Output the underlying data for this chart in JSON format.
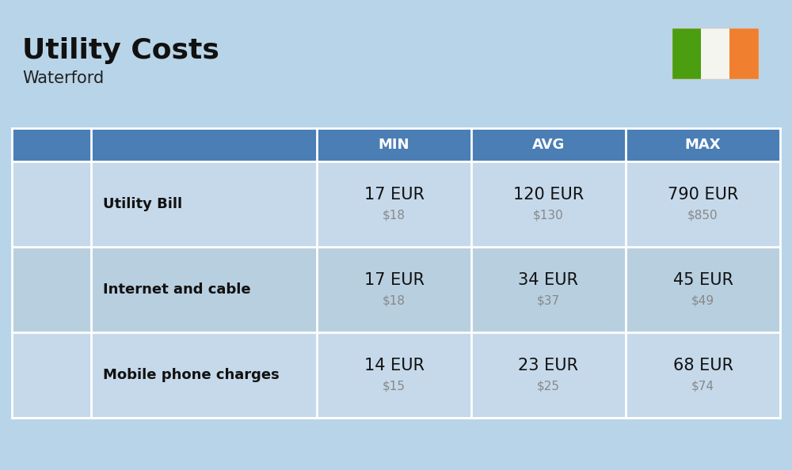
{
  "title": "Utility Costs",
  "subtitle": "Waterford",
  "background_color": "#b8d4e8",
  "header_bg_color": "#4a7eb5",
  "header_text_color": "#ffffff",
  "row_colors": [
    "#c5d9ea",
    "#b8cfe0"
  ],
  "icon_label_col_color": "#c5d9ea",
  "header_labels": [
    "MIN",
    "AVG",
    "MAX"
  ],
  "rows": [
    {
      "label": "Utility Bill",
      "min_eur": "17 EUR",
      "min_usd": "$18",
      "avg_eur": "120 EUR",
      "avg_usd": "$130",
      "max_eur": "790 EUR",
      "max_usd": "$850"
    },
    {
      "label": "Internet and cable",
      "min_eur": "17 EUR",
      "min_usd": "$18",
      "avg_eur": "34 EUR",
      "avg_usd": "$37",
      "max_eur": "45 EUR",
      "max_usd": "$49"
    },
    {
      "label": "Mobile phone charges",
      "min_eur": "14 EUR",
      "min_usd": "$15",
      "avg_eur": "23 EUR",
      "avg_usd": "$25",
      "max_eur": "68 EUR",
      "max_usd": "$74"
    }
  ],
  "flag_green": "#4a9e10",
  "flag_white": "#f5f5f0",
  "flag_orange": "#f08030",
  "title_fontsize": 26,
  "subtitle_fontsize": 15,
  "header_fontsize": 13,
  "row_label_fontsize": 13,
  "value_fontsize": 15,
  "usd_fontsize": 11
}
